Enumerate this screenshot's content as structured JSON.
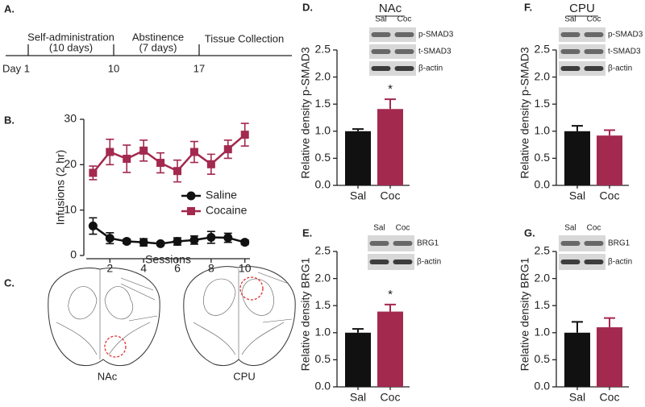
{
  "timeline": {
    "panel": "A.",
    "phases": [
      {
        "label": "Self-administration",
        "detail": "(10 days)"
      },
      {
        "label": "Abstinence",
        "detail": "(7 days)"
      },
      {
        "label": "Tissue Collection"
      }
    ],
    "days": [
      "Day 1",
      "10",
      "17"
    ]
  },
  "brain": {
    "panel": "C.",
    "regions": [
      "NAc",
      "CPU"
    ]
  },
  "chart_data": [
    {
      "type": "line",
      "panel": "B.",
      "xlabel": "Sessions",
      "ylabel": "Infusions (2 hr)",
      "x": [
        1,
        2,
        3,
        4,
        5,
        6,
        7,
        8,
        9,
        10
      ],
      "series": [
        {
          "name": "Saline",
          "color": "#111111",
          "marker": "circle",
          "values": [
            6.5,
            3.8,
            3.1,
            2.9,
            2.6,
            3.1,
            3.4,
            4.0,
            3.9,
            2.9
          ],
          "errors": [
            1.8,
            1.2,
            0.5,
            0.8,
            0.4,
            0.8,
            0.9,
            1.3,
            1.0,
            0.5
          ]
        },
        {
          "name": "Cocaine",
          "color": "#a3294f",
          "marker": "square",
          "values": [
            18.2,
            22.8,
            21.3,
            23.1,
            20.4,
            18.6,
            22.8,
            20.1,
            23.4,
            26.6
          ],
          "errors": [
            1.5,
            2.8,
            3.0,
            2.3,
            2.2,
            2.4,
            2.3,
            2.2,
            2.0,
            2.5
          ]
        }
      ],
      "xlim": [
        0.6,
        10.3
      ],
      "xticks": [
        2,
        4,
        6,
        8,
        10
      ],
      "ylim": [
        0,
        30
      ],
      "yticks": [
        0,
        10,
        20,
        30
      ]
    },
    {
      "type": "bar",
      "panel": "D.",
      "title": "NAc",
      "ylabel": "Relative density p-SMAD3",
      "categories": [
        "Sal",
        "Coc"
      ],
      "values": [
        1.0,
        1.41
      ],
      "errors": [
        0.04,
        0.18
      ],
      "colors": [
        "#111111",
        "#a3294f"
      ],
      "significance": "*",
      "ylim": [
        0,
        2.5
      ],
      "yticks": [
        {
          "value": 0,
          "label": "0.0"
        },
        {
          "value": 0.5,
          "label": "0.5"
        },
        {
          "value": 1,
          "label": "1.0"
        },
        {
          "value": 1.5,
          "label": "1.5"
        },
        {
          "value": 2,
          "label": "2.0"
        },
        {
          "value": 2.5,
          "label": "2.5"
        }
      ],
      "blot": {
        "lanes": [
          "Sal",
          "Coc"
        ],
        "bands": [
          "p-SMAD3",
          "t-SMAD3",
          "β-actin"
        ]
      }
    },
    {
      "type": "bar",
      "panel": "E.",
      "ylabel": "Relative density BRG1",
      "categories": [
        "Sal",
        "Coc"
      ],
      "values": [
        1.0,
        1.39
      ],
      "errors": [
        0.07,
        0.13
      ],
      "colors": [
        "#111111",
        "#a3294f"
      ],
      "significance": "*",
      "ylim": [
        0,
        2.5
      ],
      "yticks": [
        {
          "value": 0,
          "label": "0.0"
        },
        {
          "value": 0.5,
          "label": "0.5"
        },
        {
          "value": 1,
          "label": "1.0"
        },
        {
          "value": 1.5,
          "label": "1.5"
        },
        {
          "value": 2,
          "label": "2.0"
        },
        {
          "value": 2.5,
          "label": "2.5"
        }
      ],
      "blot": {
        "lanes": [
          "Sal",
          "Coc"
        ],
        "bands": [
          "BRG1",
          "β-actin"
        ]
      }
    },
    {
      "type": "bar",
      "panel": "F.",
      "title": "CPU",
      "ylabel": "Relative density p-SMAD3",
      "categories": [
        "Sal",
        "Coc"
      ],
      "values": [
        1.0,
        0.92
      ],
      "errors": [
        0.1,
        0.1
      ],
      "colors": [
        "#111111",
        "#a3294f"
      ],
      "ylim": [
        0,
        2.5
      ],
      "yticks": [
        {
          "value": 0,
          "label": "0.0"
        },
        {
          "value": 0.5,
          "label": "0.5"
        },
        {
          "value": 1,
          "label": "1.0"
        },
        {
          "value": 1.5,
          "label": "1.5"
        },
        {
          "value": 2,
          "label": "2.0"
        },
        {
          "value": 2.5,
          "label": "2.5"
        }
      ],
      "blot": {
        "lanes": [
          "Sal",
          "Coc"
        ],
        "bands": [
          "p-SMAD3",
          "t-SMAD3",
          "β-actin"
        ]
      }
    },
    {
      "type": "bar",
      "panel": "G.",
      "ylabel": "Relative density BRG1",
      "categories": [
        "Sal",
        "Coc"
      ],
      "values": [
        1.0,
        1.1
      ],
      "errors": [
        0.2,
        0.17
      ],
      "colors": [
        "#111111",
        "#a3294f"
      ],
      "ylim": [
        0,
        2.5
      ],
      "yticks": [
        {
          "value": 0,
          "label": "0.0"
        },
        {
          "value": 0.5,
          "label": "0.5"
        },
        {
          "value": 1,
          "label": "1.0"
        },
        {
          "value": 1.5,
          "label": "1.5"
        },
        {
          "value": 2,
          "label": "2.0"
        },
        {
          "value": 2.5,
          "label": "2.5"
        }
      ],
      "blot": {
        "lanes": [
          "Sal",
          "Coc"
        ],
        "bands": [
          "BRG1",
          "β-actin"
        ]
      }
    }
  ]
}
